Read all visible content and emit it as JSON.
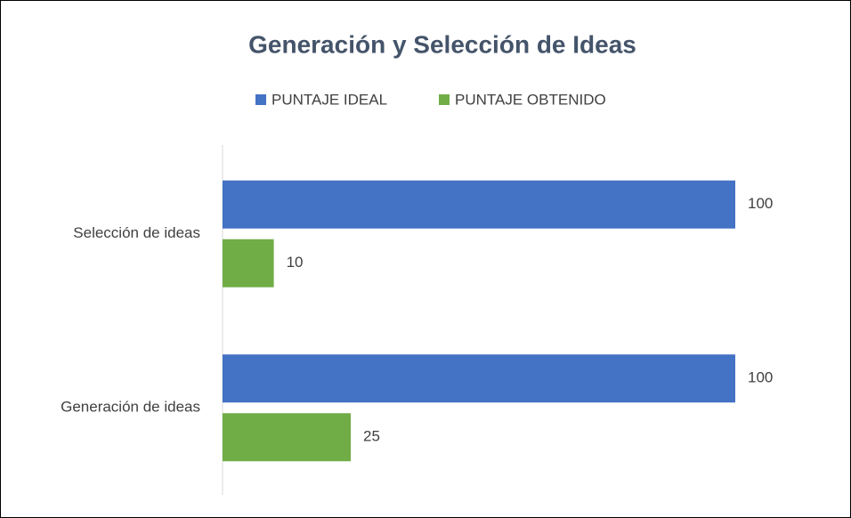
{
  "chart_data": {
    "type": "hbar",
    "title": "Generación y Selección de Ideas",
    "categories": [
      "Generación de ideas",
      "Selección de ideas"
    ],
    "series": [
      {
        "name": "PUNTAJE IDEAL",
        "color": "#4472c4",
        "values": [
          100,
          100
        ]
      },
      {
        "name": "PUNTAJE OBTENIDO",
        "color": "#70ad47",
        "values": [
          25,
          10
        ]
      }
    ],
    "xlim": [
      0,
      100
    ],
    "legend": "top"
  }
}
